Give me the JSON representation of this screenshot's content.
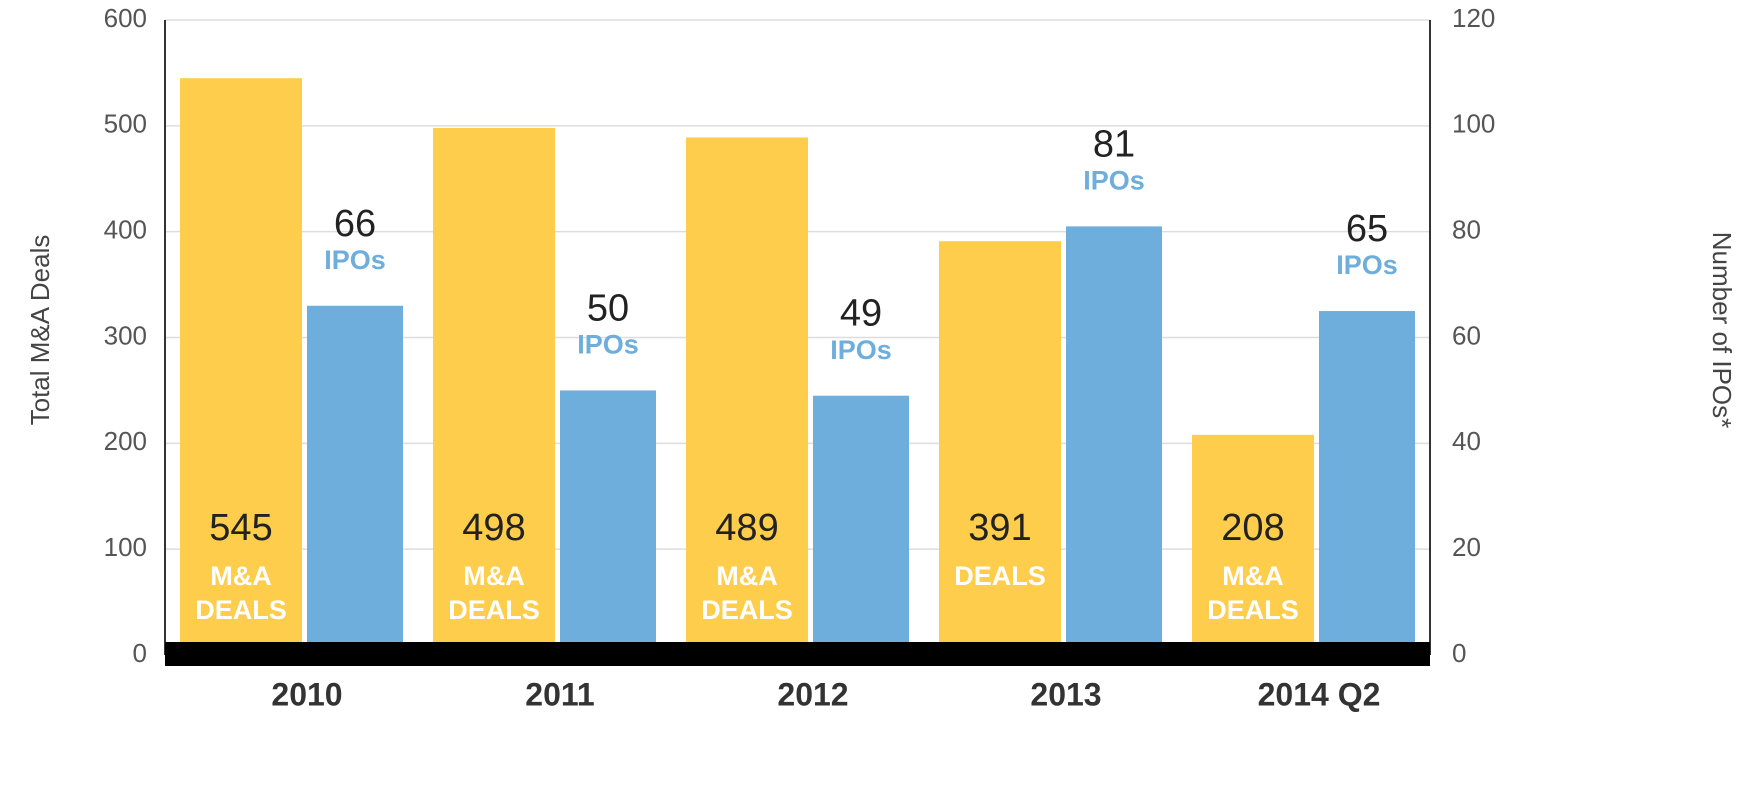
{
  "chart_data": {
    "type": "bar",
    "categories": [
      "2010",
      "2011",
      "2012",
      "2013",
      "2014 Q2"
    ],
    "ylabel": "Total M&A Deals",
    "y2label": "Number of IPOs*",
    "ylim": [
      0,
      600
    ],
    "yticks": [
      0,
      100,
      200,
      300,
      400,
      500,
      600
    ],
    "y2lim": [
      0,
      120
    ],
    "y2ticks": [
      0,
      20,
      40,
      60,
      80,
      100,
      120
    ],
    "grid": true,
    "series": [
      {
        "color": "#fecd4c",
        "values": [
          545,
          498,
          489,
          391,
          208
        ],
        "unit_labels": [
          [
            "M&A",
            "DEALS"
          ],
          [
            "M&A",
            "DEALS"
          ],
          [
            "M&A",
            "DEALS"
          ],
          [
            "DEALS"
          ],
          [
            "M&A",
            "DEALS"
          ]
        ]
      },
      {
        "color": "#6eaedc",
        "axis": "y2",
        "values": [
          66,
          50,
          49,
          81,
          65
        ],
        "unit_labels": [
          [
            "IPOs"
          ],
          [
            "IPOs"
          ],
          [
            "IPOs"
          ],
          [
            "IPOs"
          ],
          [
            "IPOs"
          ]
        ]
      }
    ]
  }
}
